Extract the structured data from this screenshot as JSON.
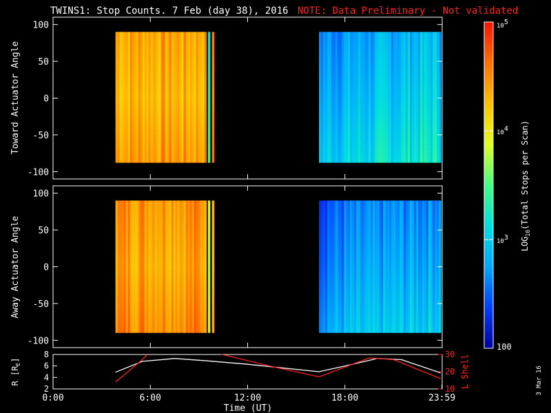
{
  "header": {
    "title": "TWINS1: Stop Counts.  7 Feb (day  38), 2016",
    "note": "NOTE: Data Preliminary - Not validated",
    "note_color": "#ff2020"
  },
  "side_stamp": "3 Mar 16",
  "chart_data": [
    {
      "type": "heatmap",
      "panel": "top",
      "ylabel": "Toward Actuator Angle",
      "ylim": [
        -110,
        110
      ],
      "yticks": [
        -100,
        -50,
        0,
        50,
        100
      ],
      "xlim": [
        0,
        24
      ],
      "data_extent": {
        "y": [
          -88,
          90
        ]
      },
      "segments": [
        {
          "start": 3.85,
          "end": 9.5,
          "level": 4.3
        },
        {
          "start": 9.55,
          "end": 9.7,
          "level": 3.4
        },
        {
          "start": 9.8,
          "end": 9.9,
          "level": 4.3
        },
        {
          "start": 16.4,
          "end": 23.9,
          "level": 2.8
        }
      ]
    },
    {
      "type": "heatmap",
      "panel": "middle",
      "ylabel": "Away Actuator Angle",
      "ylim": [
        -110,
        110
      ],
      "yticks": [
        -100,
        -50,
        0,
        50,
        100
      ],
      "xlim": [
        0,
        24
      ],
      "data_extent": {
        "y": [
          -90,
          90
        ]
      },
      "segments": [
        {
          "start": 3.85,
          "end": 9.5,
          "level": 4.4
        },
        {
          "start": 9.55,
          "end": 9.7,
          "level": 3.6
        },
        {
          "start": 9.8,
          "end": 9.9,
          "level": 4.4
        },
        {
          "start": 16.4,
          "end": 23.9,
          "level": 2.6
        }
      ]
    },
    {
      "type": "line",
      "panel": "bottom",
      "ylabel": "R [R",
      "ylabel_sub": "E",
      "ylabel_end": "]",
      "ylim": [
        2,
        8
      ],
      "yticks": [
        2,
        4,
        6,
        8
      ],
      "y2label": "L Shell",
      "y2lim": [
        10,
        30
      ],
      "y2ticks": [
        10,
        20,
        30
      ],
      "xlabel": "Time (UT)",
      "xlim": [
        0,
        24
      ],
      "xticks": [
        0,
        6,
        12,
        18,
        23.983
      ],
      "xticklabels": [
        "0:00",
        "6:00",
        "12:00",
        "18:00",
        "23:59"
      ],
      "series": [
        {
          "color": "#ffffff",
          "x": [
            3.85,
            5.5,
            7.5,
            9.5,
            12,
            14,
            16.4,
            18,
            20,
            21.5,
            23.9
          ],
          "y": [
            4.9,
            6.8,
            7.3,
            6.9,
            6.3,
            5.7,
            5.0,
            6.0,
            7.3,
            7.1,
            4.8
          ]
        },
        {
          "color": "#ff2020",
          "axis": "y2",
          "x": [
            3.85,
            5.5,
            5.9,
            10.0,
            13.5,
            16.4,
            19.5,
            21.0,
            23.9
          ],
          "y": [
            14,
            27,
            31,
            31,
            23,
            17,
            28,
            27,
            16
          ]
        }
      ]
    }
  ],
  "colorbar": {
    "label": "LOG",
    "label_sub": "10",
    "label_tail": "(Total Stops per Scan)",
    "range": [
      2,
      5
    ],
    "ticks": [
      {
        "value": 5,
        "base": "10",
        "exp": "5"
      },
      {
        "value": 4,
        "base": "10",
        "exp": "4"
      },
      {
        "value": 3,
        "base": "10",
        "exp": "3"
      },
      {
        "value": 2,
        "text": "100"
      }
    ],
    "stops": [
      "#0000a0",
      "#0040ff",
      "#00a8ff",
      "#00e0e0",
      "#40ff80",
      "#e0ff20",
      "#ffc000",
      "#ff7000",
      "#ff1000"
    ]
  }
}
